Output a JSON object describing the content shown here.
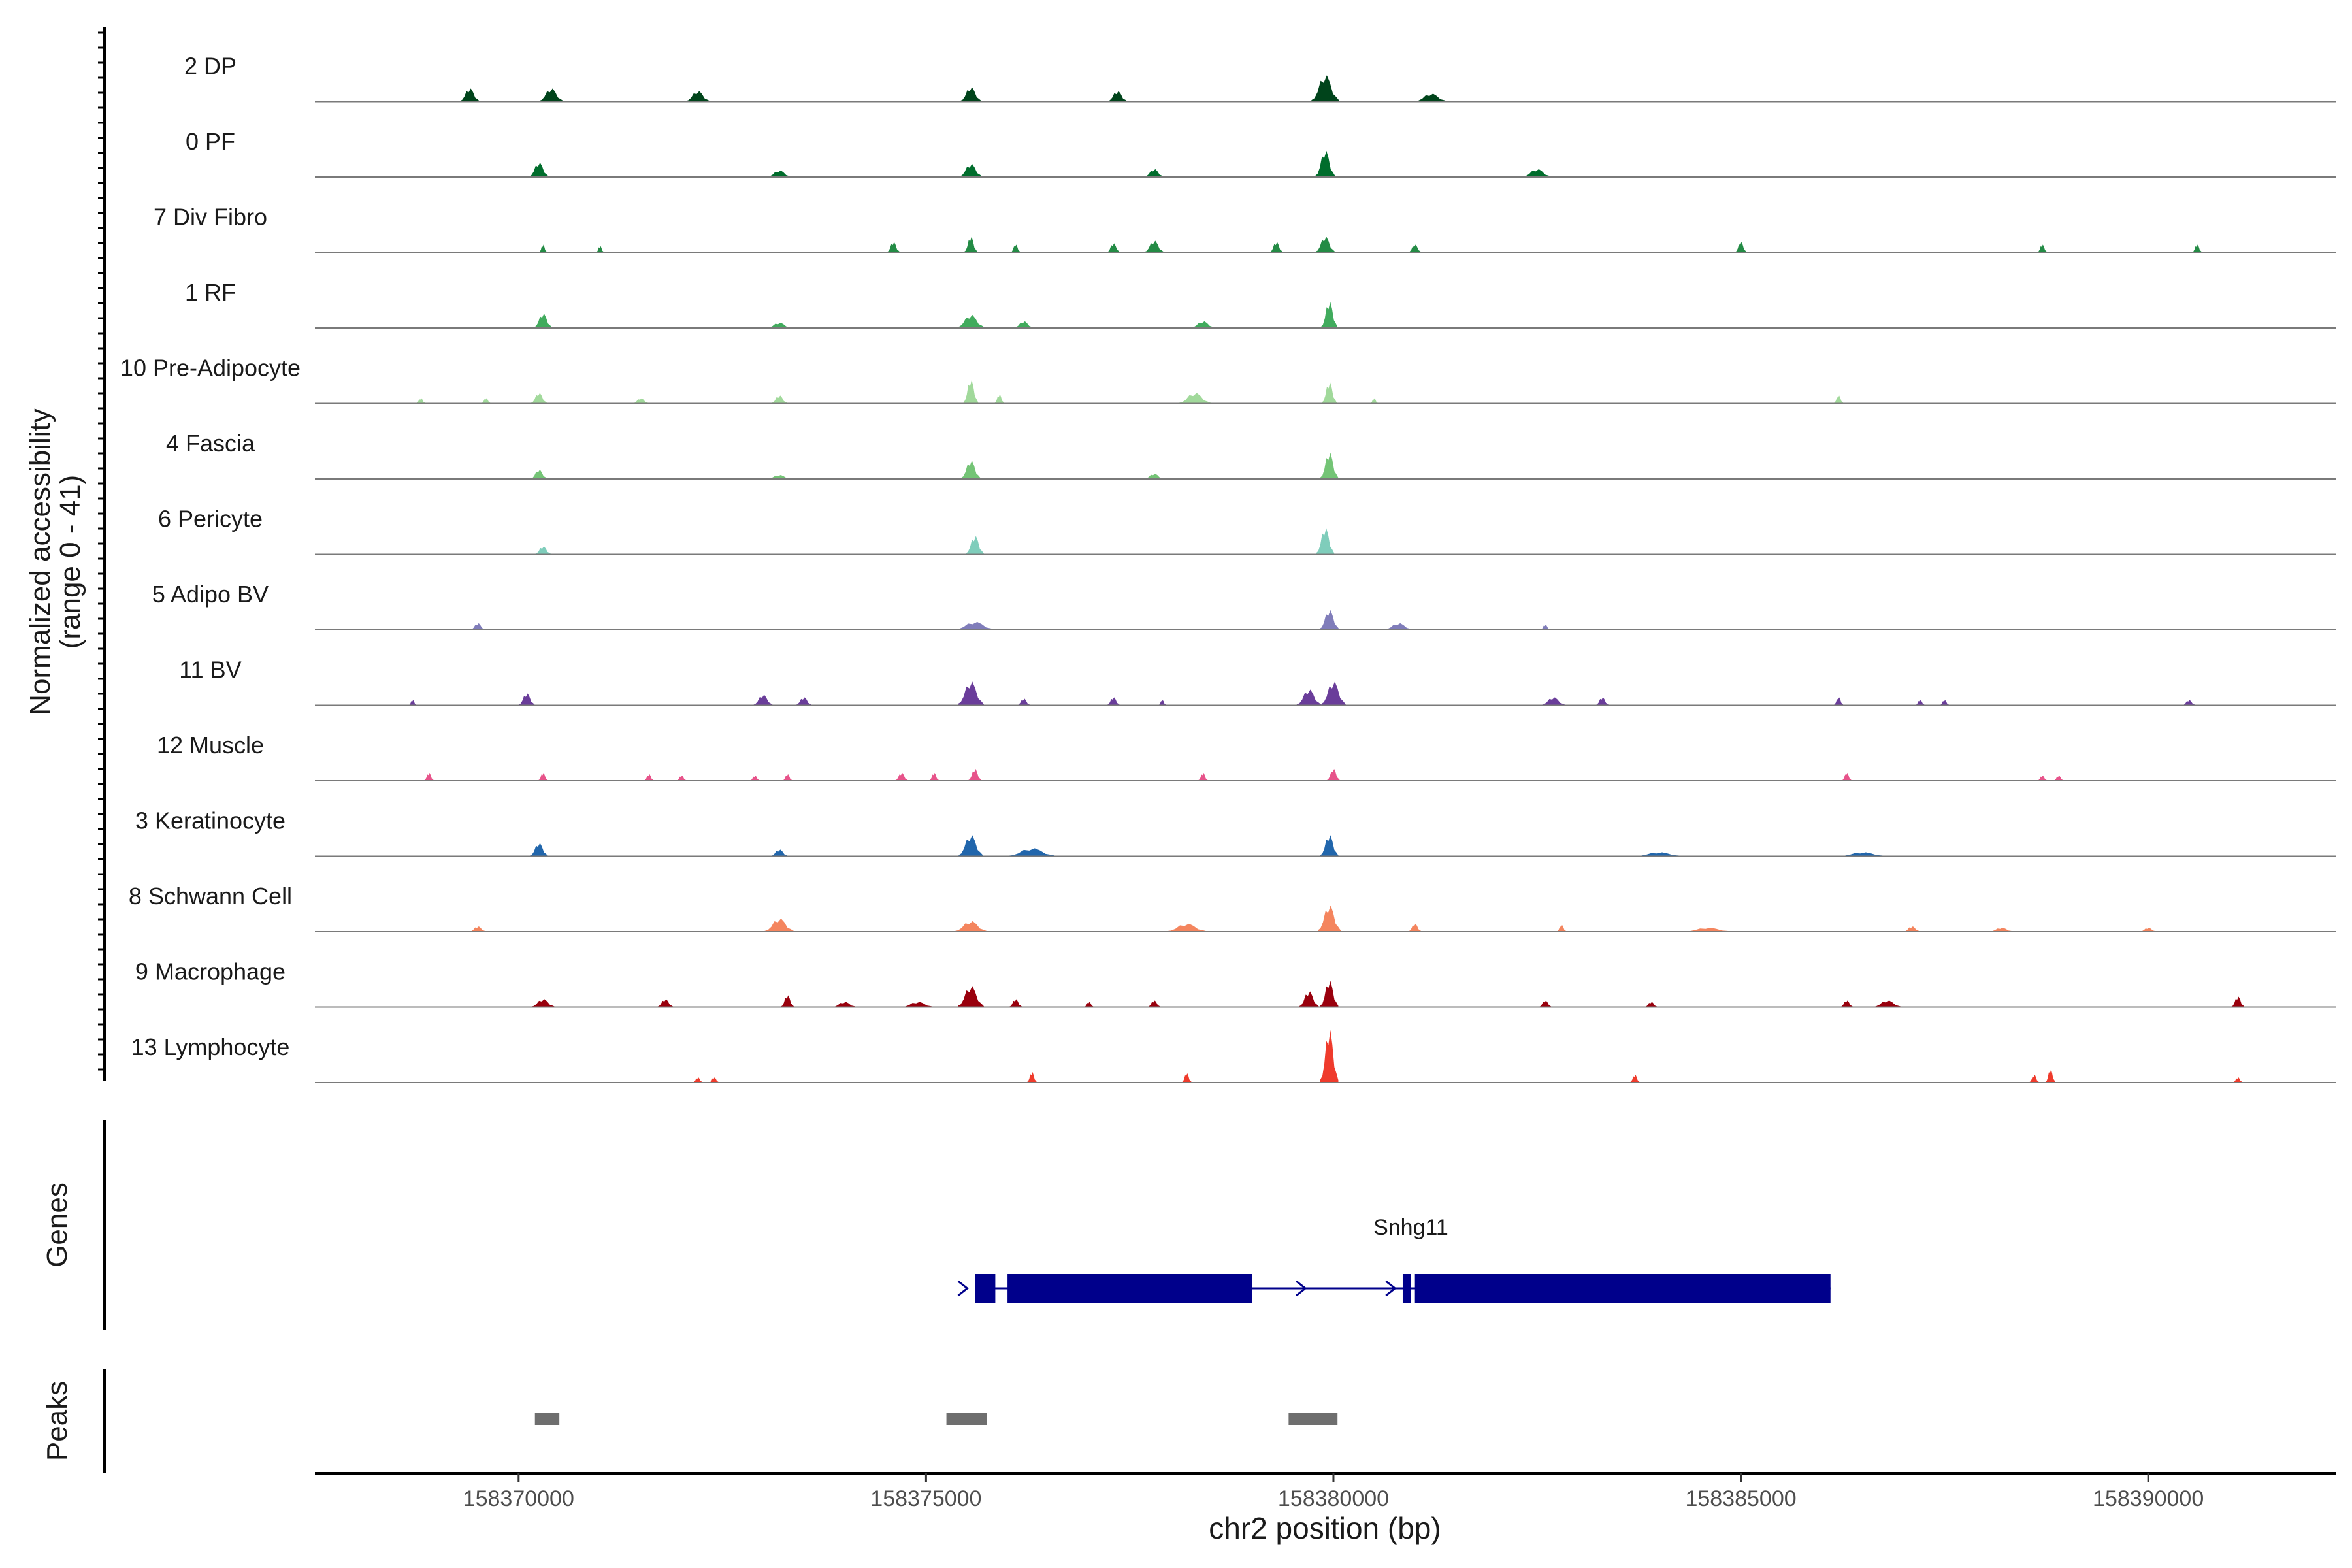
{
  "chart_data": {
    "type": "area",
    "title": "",
    "ylabel_line1": "Normalized accessibility",
    "ylabel_line2": "(range 0 - 41)",
    "xlabel": "chr2 position (bp)",
    "y_range": [
      0,
      41
    ],
    "xlim": [
      158367500,
      158392300
    ],
    "x_ticks": [
      158370000,
      158375000,
      158380000,
      158385000,
      158390000
    ],
    "x_tick_labels": [
      "158370000",
      "158375000",
      "158380000",
      "158385000",
      "158390000"
    ],
    "tracks": [
      {
        "name": "2 DP",
        "color": "#00441b",
        "peaks": [
          [
            158369400,
            0.5,
            120
          ],
          [
            158370400,
            0.5,
            150
          ],
          [
            158372200,
            0.4,
            150
          ],
          [
            158375550,
            0.55,
            130
          ],
          [
            158377350,
            0.4,
            120
          ],
          [
            158379900,
            1.0,
            170
          ],
          [
            158381200,
            0.3,
            200
          ]
        ]
      },
      {
        "name": "0 PF",
        "color": "#006d2c",
        "peaks": [
          [
            158370250,
            0.55,
            120
          ],
          [
            158373200,
            0.25,
            150
          ],
          [
            158375550,
            0.5,
            140
          ],
          [
            158377800,
            0.3,
            120
          ],
          [
            158379900,
            1.0,
            120
          ],
          [
            158382500,
            0.3,
            180
          ]
        ]
      },
      {
        "name": "7 Div Fibro",
        "color": "#238b45",
        "peaks": [
          [
            158370300,
            0.3,
            40
          ],
          [
            158371000,
            0.25,
            40
          ],
          [
            158374600,
            0.4,
            80
          ],
          [
            158375550,
            0.6,
            80
          ],
          [
            158376100,
            0.3,
            60
          ],
          [
            158377300,
            0.35,
            80
          ],
          [
            158377800,
            0.45,
            120
          ],
          [
            158379300,
            0.4,
            80
          ],
          [
            158379900,
            0.6,
            120
          ],
          [
            158381000,
            0.3,
            80
          ],
          [
            158385000,
            0.4,
            70
          ],
          [
            158388700,
            0.3,
            60
          ],
          [
            158390600,
            0.3,
            60
          ]
        ]
      },
      {
        "name": "1 RF",
        "color": "#41ab5d",
        "peaks": [
          [
            158370300,
            0.55,
            110
          ],
          [
            158373200,
            0.2,
            150
          ],
          [
            158375550,
            0.5,
            170
          ],
          [
            158376200,
            0.25,
            120
          ],
          [
            158378400,
            0.25,
            150
          ],
          [
            158379950,
            1.0,
            100
          ]
        ]
      },
      {
        "name": "10 Pre-Adipocyte",
        "color": "#a1d99b",
        "peaks": [
          [
            158368800,
            0.2,
            60
          ],
          [
            158369600,
            0.2,
            60
          ],
          [
            158370250,
            0.4,
            100
          ],
          [
            158371500,
            0.2,
            100
          ],
          [
            158373200,
            0.3,
            100
          ],
          [
            158375550,
            0.9,
            90
          ],
          [
            158375900,
            0.35,
            60
          ],
          [
            158378300,
            0.4,
            200
          ],
          [
            158379950,
            0.8,
            90
          ],
          [
            158380500,
            0.2,
            40
          ],
          [
            158386200,
            0.3,
            60
          ]
        ]
      },
      {
        "name": "4 Fascia",
        "color": "#74c476",
        "peaks": [
          [
            158370250,
            0.35,
            100
          ],
          [
            158373200,
            0.15,
            150
          ],
          [
            158375550,
            0.7,
            120
          ],
          [
            158377800,
            0.2,
            120
          ],
          [
            158379950,
            1.0,
            110
          ]
        ]
      },
      {
        "name": "6 Pericyte",
        "color": "#7fcdbb",
        "peaks": [
          [
            158370300,
            0.3,
            100
          ],
          [
            158375600,
            0.7,
            110
          ],
          [
            158379900,
            1.0,
            110
          ]
        ]
      },
      {
        "name": "5 Adipo BV",
        "color": "#807dba",
        "peaks": [
          [
            158369500,
            0.25,
            90
          ],
          [
            158375600,
            0.3,
            250
          ],
          [
            158379950,
            0.75,
            120
          ],
          [
            158380800,
            0.25,
            180
          ],
          [
            158382600,
            0.2,
            60
          ]
        ]
      },
      {
        "name": "11 BV",
        "color": "#6a3d9a",
        "peaks": [
          [
            158368700,
            0.2,
            50
          ],
          [
            158370100,
            0.45,
            100
          ],
          [
            158373000,
            0.4,
            120
          ],
          [
            158373500,
            0.3,
            100
          ],
          [
            158375550,
            0.9,
            160
          ],
          [
            158376200,
            0.25,
            80
          ],
          [
            158377300,
            0.3,
            80
          ],
          [
            158377900,
            0.2,
            40
          ],
          [
            158379700,
            0.6,
            150
          ],
          [
            158380000,
            0.9,
            150
          ],
          [
            158382700,
            0.3,
            150
          ],
          [
            158383300,
            0.3,
            80
          ],
          [
            158386200,
            0.3,
            60
          ],
          [
            158387200,
            0.2,
            60
          ],
          [
            158387500,
            0.2,
            60
          ],
          [
            158390500,
            0.2,
            80
          ]
        ]
      },
      {
        "name": "12 Muscle",
        "color": "#e7538a",
        "peaks": [
          [
            158368900,
            0.3,
            60
          ],
          [
            158370300,
            0.3,
            60
          ],
          [
            158371600,
            0.25,
            60
          ],
          [
            158372000,
            0.2,
            60
          ],
          [
            158372900,
            0.2,
            60
          ],
          [
            158373300,
            0.25,
            60
          ],
          [
            158374700,
            0.3,
            80
          ],
          [
            158375100,
            0.3,
            60
          ],
          [
            158375600,
            0.45,
            80
          ],
          [
            158378400,
            0.3,
            60
          ],
          [
            158380000,
            0.45,
            80
          ],
          [
            158386300,
            0.3,
            60
          ],
          [
            158388700,
            0.2,
            60
          ],
          [
            158388900,
            0.2,
            60
          ]
        ]
      },
      {
        "name": "3 Keratinocyte",
        "color": "#2166ac",
        "peaks": [
          [
            158370250,
            0.5,
            110
          ],
          [
            158373200,
            0.25,
            110
          ],
          [
            158375550,
            0.8,
            150
          ],
          [
            158376300,
            0.3,
            300
          ],
          [
            158379950,
            0.8,
            110
          ],
          [
            158384000,
            0.15,
            300
          ],
          [
            158386500,
            0.15,
            300
          ]
        ]
      },
      {
        "name": "8 Schwann Cell",
        "color": "#f4855e",
        "peaks": [
          [
            158369500,
            0.2,
            100
          ],
          [
            158373200,
            0.5,
            180
          ],
          [
            158375550,
            0.4,
            200
          ],
          [
            158378200,
            0.3,
            250
          ],
          [
            158379950,
            1.0,
            140
          ],
          [
            158381000,
            0.3,
            80
          ],
          [
            158382800,
            0.25,
            60
          ],
          [
            158384600,
            0.15,
            300
          ],
          [
            158387100,
            0.2,
            100
          ],
          [
            158388200,
            0.15,
            150
          ],
          [
            158390000,
            0.15,
            100
          ]
        ]
      },
      {
        "name": "9 Macrophage",
        "color": "#99000d",
        "peaks": [
          [
            158370300,
            0.3,
            150
          ],
          [
            158371800,
            0.3,
            100
          ],
          [
            158373300,
            0.45,
            80
          ],
          [
            158374000,
            0.2,
            150
          ],
          [
            158374900,
            0.2,
            200
          ],
          [
            158375550,
            0.8,
            160
          ],
          [
            158376100,
            0.3,
            80
          ],
          [
            158377000,
            0.2,
            60
          ],
          [
            158377800,
            0.25,
            80
          ],
          [
            158379700,
            0.6,
            120
          ],
          [
            158379950,
            1.0,
            110
          ],
          [
            158382600,
            0.25,
            80
          ],
          [
            158383900,
            0.2,
            80
          ],
          [
            158386300,
            0.25,
            80
          ],
          [
            158386800,
            0.25,
            180
          ],
          [
            158391100,
            0.4,
            80
          ]
        ]
      },
      {
        "name": "13 Lymphocyte",
        "color": "#ef3b2c",
        "peaks": [
          [
            158372200,
            0.2,
            60
          ],
          [
            158372400,
            0.2,
            60
          ],
          [
            158376300,
            0.4,
            60
          ],
          [
            158378200,
            0.35,
            60
          ],
          [
            158379950,
            2.0,
            110
          ],
          [
            158383700,
            0.3,
            60
          ],
          [
            158388600,
            0.3,
            60
          ],
          [
            158388800,
            0.5,
            60
          ],
          [
            158391100,
            0.2,
            60
          ]
        ]
      }
    ],
    "genes": {
      "axis_label": "Genes",
      "name": "Snhg11",
      "color": "#00008b",
      "start": 158375600,
      "end": 158386100,
      "exons": [
        [
          158375600,
          158375850
        ],
        [
          158376000,
          158379000
        ],
        [
          158380850,
          158380950
        ],
        [
          158381000,
          158386100
        ]
      ],
      "strand": "+"
    },
    "peaks_track": {
      "axis_label": "Peaks",
      "color": "#6e6e6e",
      "intervals": [
        [
          158370200,
          158370500
        ],
        [
          158375250,
          158375750
        ],
        [
          158379450,
          158380050
        ]
      ]
    }
  }
}
